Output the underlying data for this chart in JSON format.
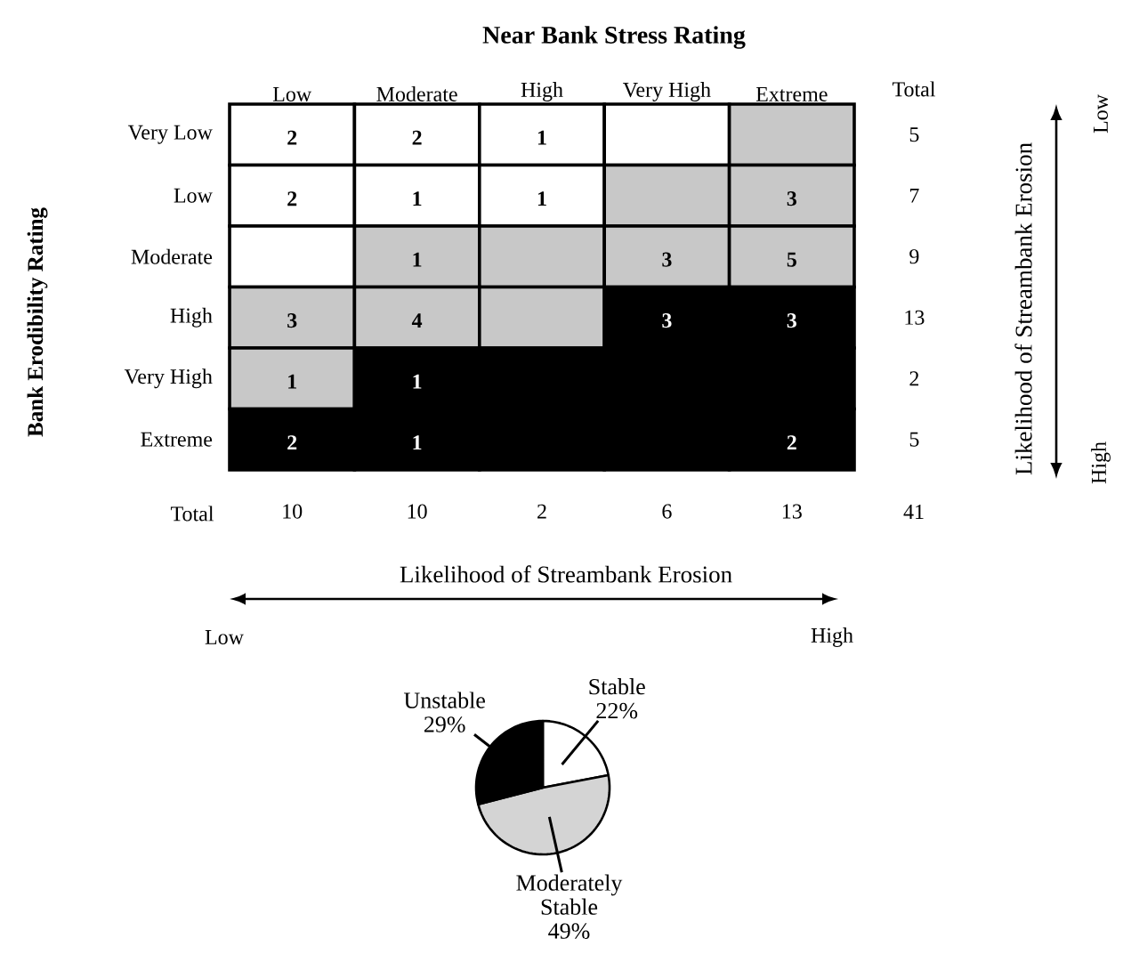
{
  "chart_data": [
    {
      "type": "heatmap",
      "title": "Near Bank Stress Rating",
      "xlabel": "Likelihood of Streambank Erosion",
      "ylabel": "Bank Erodibility Rating",
      "y2label": "Likelihood of Streambank Erosion",
      "categories": [
        "Low",
        "Moderate",
        "High",
        "Very High",
        "Extreme"
      ],
      "y_categories": [
        "Very Low",
        "Low",
        "Moderate",
        "High",
        "Very High",
        "Extreme"
      ],
      "y2_categories": [
        "5",
        "7",
        "9",
        "13",
        "2",
        "5"
      ],
      "cells": [
        [
          2,
          2,
          1,
          null,
          null
        ],
        [
          2,
          1,
          1,
          null,
          3
        ],
        [
          null,
          1,
          null,
          3,
          5
        ],
        [
          3,
          4,
          null,
          3,
          3
        ],
        [
          1,
          1,
          null,
          null,
          null
        ],
        [
          2,
          1,
          null,
          null,
          2
        ]
      ],
      "colors": [
        [
          "#ffffff",
          "#ffffff",
          "#ffffff",
          "#ffffff",
          "#c8c8c8"
        ],
        [
          "#ffffff",
          "#ffffff",
          "#ffffff",
          "#c8c8c8",
          "#c8c8c8"
        ],
        [
          "#ffffff",
          "#c8c8c8",
          "#c8c8c8",
          "#c8c8c8",
          "#c8c8c8"
        ],
        [
          "#c8c8c8",
          "#c8c8c8",
          "#c8c8c8",
          "#000000",
          "#000000"
        ],
        [
          "#c8c8c8",
          "#000000",
          "#000000",
          "#000000",
          "#000000"
        ],
        [
          "#000000",
          "#000000",
          "#000000",
          "#000000",
          "#000000"
        ]
      ],
      "data_labels": true,
      "totals": [
        "10",
        "10",
        "2",
        "6",
        "13"
      ],
      "annotations": [
        "Total",
        "Total",
        "41",
        "Low",
        "High",
        "Low",
        "High"
      ]
    },
    {
      "type": "pie",
      "categories": [
        "Stable",
        "Moderately Stable",
        "Unstable"
      ],
      "values": [
        22,
        49,
        29
      ],
      "value_labels": [
        "22%",
        "49%",
        "29%"
      ],
      "colors": [
        "#ffffff",
        "#d4d4d4",
        "#000000"
      ]
    }
  ]
}
